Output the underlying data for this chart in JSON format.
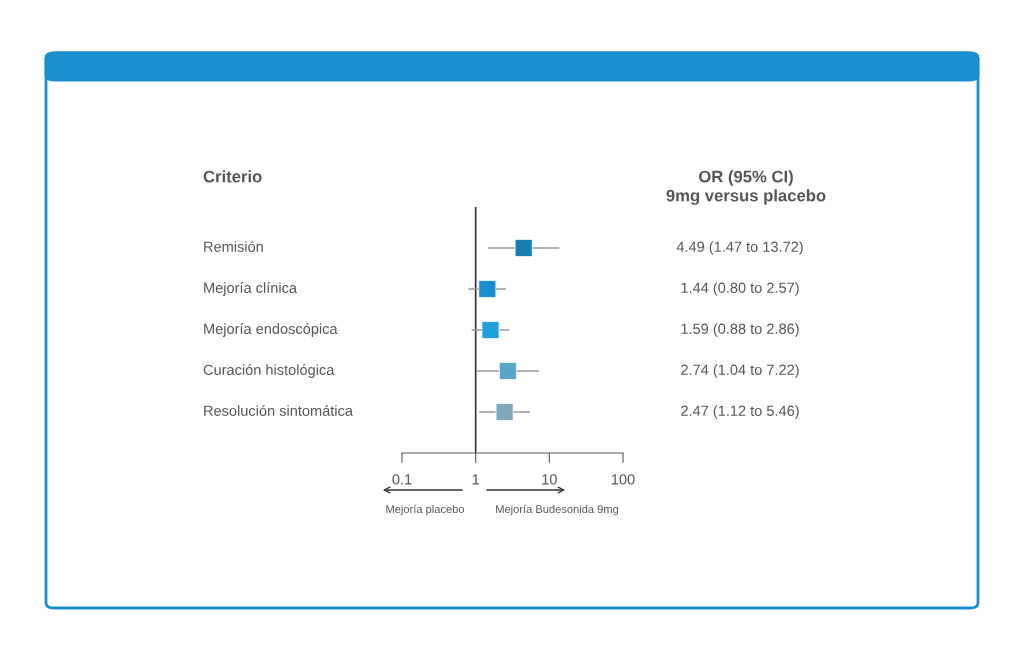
{
  "chart_data": {
    "type": "scatter",
    "orientation": "horizontal",
    "categories": [
      "Remisión",
      "Mejoría clínica",
      "Mejoría endoscópica",
      "Curación histológica",
      "Resolución sintomática"
    ],
    "values": [
      4.49,
      1.44,
      1.59,
      2.74,
      2.47
    ],
    "errors": [
      [
        1.47,
        13.72
      ],
      [
        0.8,
        2.57
      ],
      [
        0.88,
        2.86
      ],
      [
        1.04,
        7.22
      ],
      [
        1.12,
        5.46
      ]
    ],
    "value_labels": [
      "4.49 (1.47 to 13.72)",
      "1.44 (0.80 to 2.57)",
      "1.59 (0.88 to 2.86)",
      "2.74 (1.04 to 7.22)",
      "2.47 (1.12 to 5.46)"
    ],
    "colors": [
      "#1a7fb0",
      "#1a8fd0",
      "#1fa0dc",
      "#5aa6c8",
      "#7fa8bf"
    ],
    "marker": "square",
    "log": "x",
    "xlim": [
      0.1,
      100
    ],
    "xticks": [
      0.1,
      1,
      10,
      100
    ],
    "ref_lines": [
      {
        "axis": "x",
        "value": 1,
        "color": "#333333"
      }
    ],
    "grid": false,
    "legend": false,
    "tick_labels": "x",
    "annotations": [
      "Criterio",
      "OR (95% CI)",
      "9mg versus placebo",
      "Mejoría placebo",
      "Mejoría Budesonida 9mg"
    ]
  }
}
